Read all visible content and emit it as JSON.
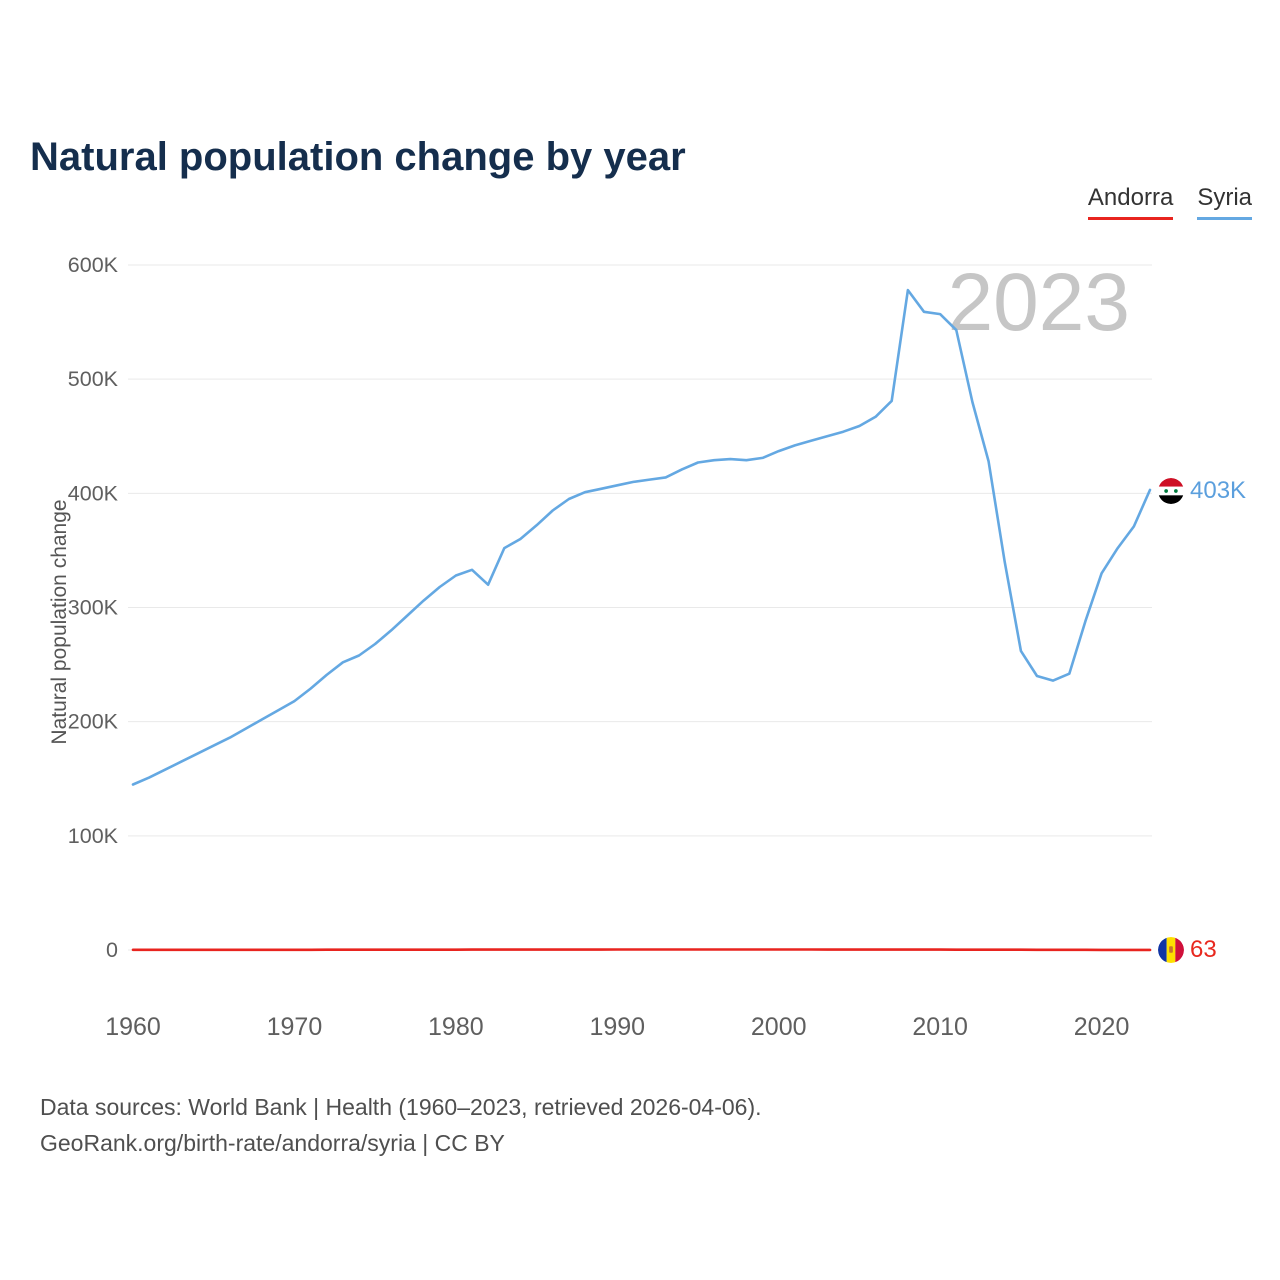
{
  "page": {
    "title": "Natural population change by year",
    "footer_line1": "Data sources: World Bank | Health (1960–2023, retrieved 2026-04-06).",
    "footer_line2": "GeoRank.org/birth-rate/andorra/syria | CC BY"
  },
  "legend": {
    "items": [
      {
        "label": "Andorra",
        "color": "#e8241f"
      },
      {
        "label": "Syria",
        "color": "#64a8e2"
      }
    ]
  },
  "chart_data": {
    "type": "line",
    "title": "Natural population change by year",
    "ylabel": "Natural population change",
    "watermark": "2023",
    "grid": "horizontal",
    "legend_position": "top-right",
    "ylim": [
      0,
      600000
    ],
    "x": [
      1960,
      1961,
      1962,
      1963,
      1964,
      1965,
      1966,
      1967,
      1968,
      1969,
      1970,
      1971,
      1972,
      1973,
      1974,
      1975,
      1976,
      1977,
      1978,
      1979,
      1980,
      1981,
      1982,
      1983,
      1984,
      1985,
      1986,
      1987,
      1988,
      1989,
      1990,
      1991,
      1992,
      1993,
      1994,
      1995,
      1996,
      1997,
      1998,
      1999,
      2000,
      2001,
      2002,
      2003,
      2004,
      2005,
      2006,
      2007,
      2008,
      2009,
      2010,
      2011,
      2012,
      2013,
      2014,
      2015,
      2016,
      2017,
      2018,
      2019,
      2020,
      2021,
      2022,
      2023
    ],
    "xticks": [
      1960,
      1970,
      1980,
      1990,
      2000,
      2010,
      2020
    ],
    "yticks": [
      {
        "value": 0,
        "label": "0"
      },
      {
        "value": 100000,
        "label": "100K"
      },
      {
        "value": 200000,
        "label": "200K"
      },
      {
        "value": 300000,
        "label": "300K"
      },
      {
        "value": 400000,
        "label": "400K"
      },
      {
        "value": 500000,
        "label": "500K"
      },
      {
        "value": 600000,
        "label": "600K"
      }
    ],
    "series": [
      {
        "name": "Syria",
        "color": "#64a8e2",
        "end_label": "403K",
        "values": [
          145000,
          151000,
          158000,
          165000,
          172000,
          179000,
          186000,
          194000,
          202000,
          210000,
          218000,
          229000,
          241000,
          252000,
          258000,
          268000,
          280000,
          293000,
          306000,
          318000,
          328000,
          333000,
          320000,
          352000,
          360000,
          372000,
          385000,
          395000,
          401000,
          404000,
          407000,
          410000,
          412000,
          414000,
          421000,
          427000,
          429000,
          430000,
          429000,
          431000,
          437000,
          442000,
          446000,
          450000,
          454000,
          459000,
          467000,
          481000,
          578000,
          559000,
          557000,
          543000,
          480000,
          428000,
          340000,
          262000,
          240000,
          236000,
          242000,
          288000,
          330000,
          352000,
          371000,
          403000
        ]
      },
      {
        "name": "Andorra",
        "color": "#e8241f",
        "end_label": "63",
        "values": [
          140,
          145,
          150,
          155,
          160,
          165,
          170,
          178,
          185,
          192,
          200,
          210,
          220,
          230,
          240,
          250,
          260,
          270,
          280,
          290,
          300,
          310,
          320,
          330,
          340,
          350,
          360,
          370,
          380,
          390,
          400,
          410,
          415,
          420,
          425,
          430,
          430,
          428,
          425,
          420,
          415,
          410,
          400,
          390,
          380,
          370,
          360,
          350,
          340,
          330,
          320,
          300,
          280,
          260,
          240,
          220,
          200,
          180,
          160,
          140,
          120,
          100,
          80,
          63
        ]
      }
    ]
  }
}
